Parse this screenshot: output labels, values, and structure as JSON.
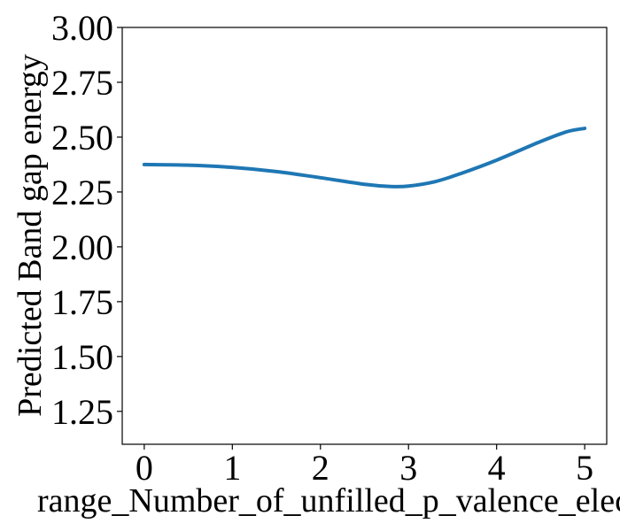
{
  "chart_data": {
    "type": "line",
    "title": "",
    "xlabel": "range_Number_of_unfilled_p_valence_elec",
    "ylabel": "Predicted Band gap energy",
    "xlim": [
      -0.25,
      5.25
    ],
    "ylim": [
      1.1,
      3.0
    ],
    "x_ticks": [
      0,
      1,
      2,
      3,
      4,
      5
    ],
    "y_ticks": [
      1.25,
      1.5,
      1.75,
      2.0,
      2.25,
      2.5,
      2.75,
      3.0
    ],
    "x_tick_labels": [
      "0",
      "1",
      "2",
      "3",
      "4",
      "5"
    ],
    "y_tick_labels": [
      "1.25",
      "1.50",
      "1.75",
      "2.00",
      "2.25",
      "2.50",
      "2.75",
      "3.00"
    ],
    "grid": false,
    "series": [
      {
        "color": "#1f77b4",
        "x": [
          0,
          0.5,
          1.0,
          1.5,
          2.0,
          2.5,
          2.8,
          3.0,
          3.3,
          3.6,
          4.0,
          4.5,
          4.8,
          5.0
        ],
        "y": [
          2.375,
          2.372,
          2.362,
          2.343,
          2.315,
          2.285,
          2.275,
          2.277,
          2.297,
          2.335,
          2.395,
          2.48,
          2.525,
          2.54
        ]
      }
    ]
  }
}
